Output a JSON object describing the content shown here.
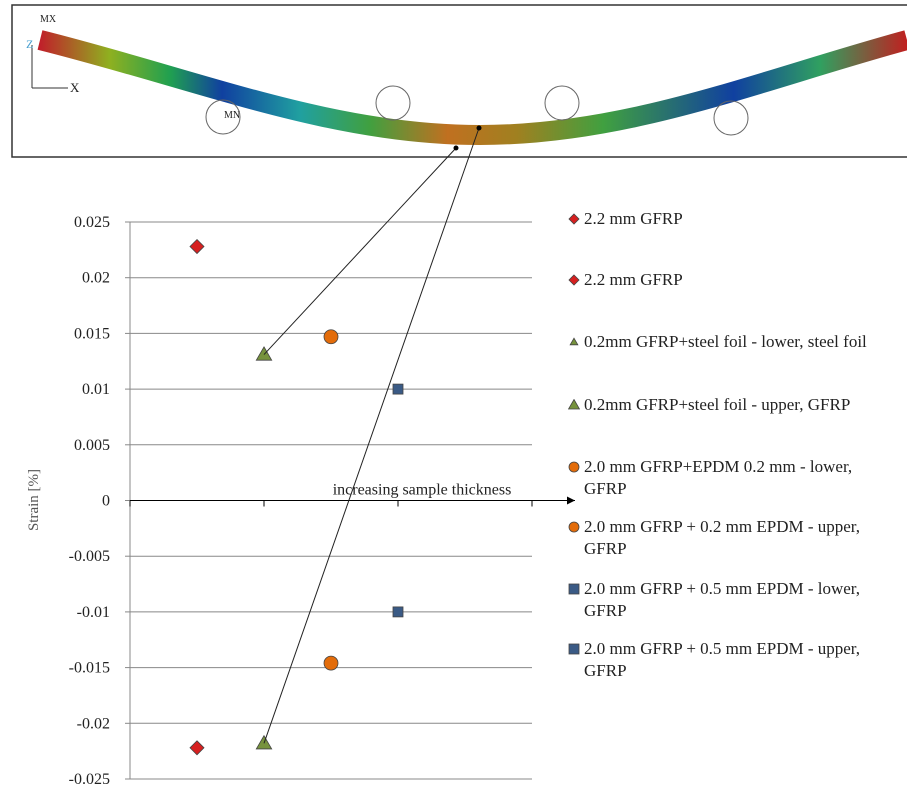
{
  "fe_image": {
    "labels": [
      "MX",
      "MN",
      "Z",
      "X"
    ]
  },
  "chart_data": {
    "type": "scatter",
    "y_label": "Strain [%]",
    "annotation": "increasing sample thickness",
    "xlim": [
      0,
      6
    ],
    "xticks": [
      0,
      2,
      4,
      6
    ],
    "ylim": [
      -0.025,
      0.025
    ],
    "yticks": [
      -0.025,
      -0.02,
      -0.015,
      -0.01,
      -0.005,
      0,
      0.005,
      0.01,
      0.015,
      0.02,
      0.025
    ],
    "grid": true,
    "series": [
      {
        "name": "2.2 mm GFRP",
        "color": "#d62020",
        "marker": "diamond",
        "x": [
          1
        ],
        "values": [
          0.0228
        ]
      },
      {
        "name": "2.2 mm GFRP",
        "color": "#d62020",
        "marker": "diamond",
        "x": [
          1
        ],
        "values": [
          -0.0222
        ]
      },
      {
        "name": "0.2mm GFRP+steel foil - lower, steel foil",
        "color": "#76923c",
        "marker": "triangle",
        "x": [
          2
        ],
        "values": [
          -0.0218
        ]
      },
      {
        "name": "0.2mm GFRP+steel foil - upper, GFRP",
        "color": "#76923c",
        "marker": "triangle",
        "x": [
          2
        ],
        "values": [
          0.0131
        ]
      },
      {
        "name": "2.0 mm GFRP+EPDM 0.2 mm - lower, GFRP",
        "color": "#e36c0a",
        "marker": "circle",
        "x": [
          3
        ],
        "values": [
          0.0147
        ]
      },
      {
        "name": "2.0 mm GFRP + 0.2 mm EPDM - upper, GFRP",
        "color": "#e36c0a",
        "marker": "circle",
        "x": [
          3
        ],
        "values": [
          -0.0146
        ]
      },
      {
        "name": "2.0 mm GFRP + 0.5 mm EPDM - lower, GFRP",
        "color": "#3a5a85",
        "marker": "square",
        "x": [
          4
        ],
        "values": [
          0.01
        ]
      },
      {
        "name": "2.0 mm GFRP + 0.5 mm EPDM - upper, GFRP",
        "color": "#3a5a85",
        "marker": "square",
        "x": [
          4
        ],
        "values": [
          -0.01
        ]
      }
    ]
  }
}
